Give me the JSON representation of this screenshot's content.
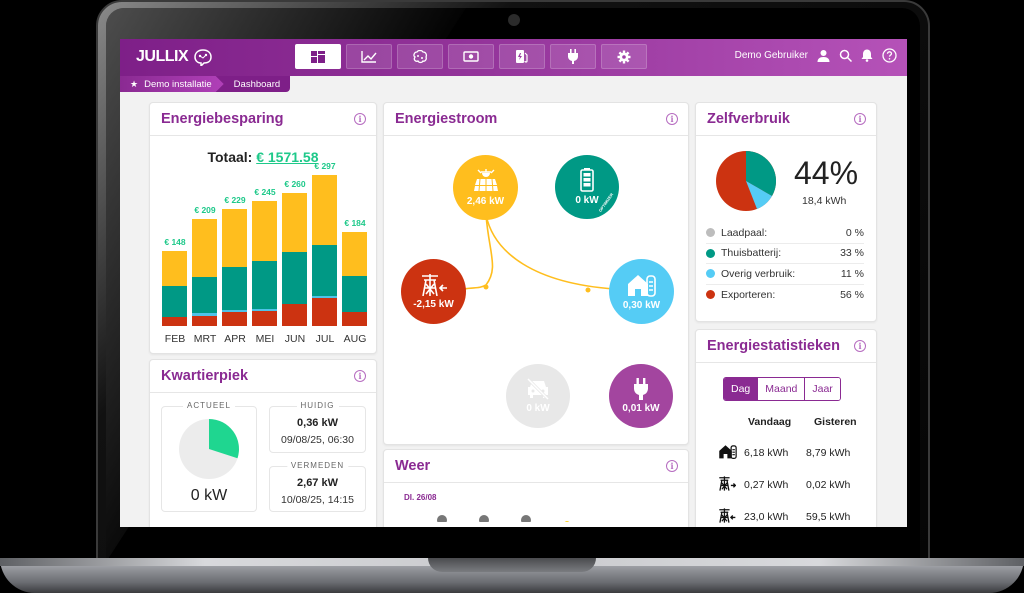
{
  "header": {
    "logo": "JULLIX",
    "nav": [
      {
        "name": "dashboard",
        "icon": "dashboard-icon",
        "active": true
      },
      {
        "name": "charts",
        "icon": "line-chart-icon",
        "active": false
      },
      {
        "name": "brain",
        "icon": "brain-icon",
        "active": false
      },
      {
        "name": "money",
        "icon": "money-icon",
        "active": false
      },
      {
        "name": "charging-station",
        "icon": "charging-station-icon",
        "active": false
      },
      {
        "name": "plug",
        "icon": "plug-icon",
        "active": false
      },
      {
        "name": "settings",
        "icon": "gear-icon",
        "active": false
      }
    ],
    "user_name": "Demo Gebruiker"
  },
  "breadcrumb": {
    "items": [
      "Demo installatie",
      "Dashboard"
    ]
  },
  "energiebesparing": {
    "title": "Energiebesparing",
    "total_label": "Totaal:",
    "total_value": "€ 1571.58"
  },
  "chart_data": {
    "type": "bar",
    "stacked": true,
    "title": "Energiebesparing",
    "categories": [
      "FEB",
      "MRT",
      "APR",
      "MEI",
      "JUN",
      "JUL",
      "AUG"
    ],
    "totals_labels": [
      "€ 148",
      "€ 209",
      "€ 229",
      "€ 245",
      "€ 260",
      "€ 297",
      "€ 184"
    ],
    "totals": [
      148,
      209,
      229,
      245,
      260,
      297,
      184
    ],
    "series": [
      {
        "name": "red",
        "color": "#cc3311",
        "values": [
          18,
          20,
          27,
          30,
          43,
          55,
          27
        ]
      },
      {
        "name": "lightblue",
        "color": "#4fc3e8",
        "values": [
          0,
          5,
          4,
          3,
          0,
          3,
          0
        ]
      },
      {
        "name": "teal",
        "color": "#009985",
        "values": [
          60,
          72,
          85,
          95,
          102,
          100,
          72
        ]
      },
      {
        "name": "yellow",
        "color": "#ffbe1e",
        "values": [
          70,
          112,
          113,
          117,
          115,
          139,
          85
        ]
      }
    ],
    "hatched_last": true,
    "xlabel": "",
    "ylabel": ""
  },
  "kwartierpiek": {
    "title": "Kwartierpiek",
    "actueel_label": "ACTUEEL",
    "actueel_value": "0 kW",
    "actueel_pct": 30,
    "huidig_label": "HUIDIG",
    "huidig_value": "0,36 kW",
    "huidig_date": "09/08/25, 06:30",
    "vermeden_label": "VERMEDEN",
    "vermeden_value": "2,67 kW",
    "vermeden_date": "10/08/25, 14:15"
  },
  "energiestroom": {
    "title": "Energiestroom",
    "nodes": {
      "solar": {
        "value": "2,46 kW",
        "color": "#ffbe1e"
      },
      "battery": {
        "value": "0 kW",
        "color": "#009985",
        "badge": "OPTIMIZER"
      },
      "grid": {
        "value": "-2,15 kW",
        "color": "#cc3311"
      },
      "home": {
        "value": "0,30 kW",
        "color": "#55ccf5"
      },
      "car": {
        "value": "0 kW",
        "color": "#e8e8e8"
      },
      "plug": {
        "value": "0,01 kW",
        "color": "#a3459f"
      }
    }
  },
  "weer": {
    "title": "Weer",
    "date": "DI. 26/08"
  },
  "zelfverbruik": {
    "title": "Zelfverbruik",
    "percentage": "44%",
    "energy": "18,4 kWh",
    "legend": [
      {
        "label": "Laadpaal:",
        "value": "0 %",
        "color": "#bdbdbd"
      },
      {
        "label": "Thuisbatterij:",
        "value": "33 %",
        "color": "#009985"
      },
      {
        "label": "Overig verbruik:",
        "value": "11 %",
        "color": "#55ccf5"
      },
      {
        "label": "Exporteren:",
        "value": "56 %",
        "color": "#cc3311"
      }
    ]
  },
  "energiestatistieken": {
    "title": "Energiestatistieken",
    "tabs": [
      "Dag",
      "Maand",
      "Jaar"
    ],
    "active_tab": "Dag",
    "col_today": "Vandaag",
    "col_yesterday": "Gisteren",
    "rows": [
      {
        "icon": "home-icon",
        "today": "6,18 kWh",
        "yesterday": "8,79 kWh"
      },
      {
        "icon": "grid-export-icon",
        "today": "0,27 kWh",
        "yesterday": "0,02 kWh"
      },
      {
        "icon": "grid-import-icon",
        "today": "23,0 kWh",
        "yesterday": "59,5 kWh"
      }
    ]
  }
}
